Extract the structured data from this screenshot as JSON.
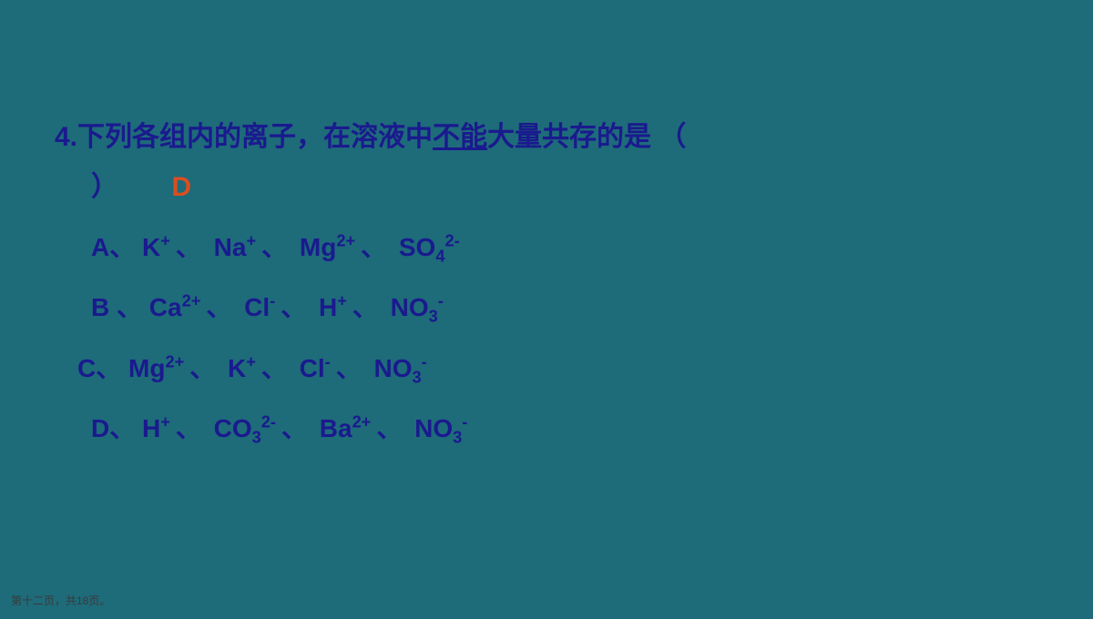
{
  "slide": {
    "background_color": "#1e6b7a",
    "text_color": "#1a1a8e",
    "answer_color": "#d94e1f",
    "question_number": "4.",
    "question_part1": "下列各组内的离子，在溶液中",
    "question_underline": "不能",
    "question_part2": "大量共存的是 （",
    "close_paren": "）",
    "answer": "D",
    "options": {
      "A": {
        "label": "A、",
        "ions": [
          {
            "base": "K",
            "super": "+"
          },
          {
            "base": "Na",
            "super": "+"
          },
          {
            "base": "Mg",
            "super": "2+"
          },
          {
            "base": "SO",
            "sub": "4",
            "super": "2-"
          }
        ]
      },
      "B": {
        "label": "B 、",
        "ions": [
          {
            "base": "Ca",
            "super": "2+"
          },
          {
            "base": "Cl",
            "super": "-"
          },
          {
            "base": "H",
            "super": "+"
          },
          {
            "base": "NO",
            "sub": "3",
            "super": "-"
          }
        ]
      },
      "C": {
        "label": "C、",
        "ions": [
          {
            "base": "Mg",
            "super": "2+"
          },
          {
            "base": "K",
            "super": "+"
          },
          {
            "base": "Cl",
            "super": "-"
          },
          {
            "base": "NO",
            "sub": "3",
            "super": "-"
          }
        ]
      },
      "D": {
        "label": "D、",
        "ions": [
          {
            "base": "H",
            "super": "+"
          },
          {
            "base": "CO",
            "sub": "3",
            "super": "2-"
          },
          {
            "base": "Ba",
            "super": "2+"
          },
          {
            "base": "NO",
            "sub": "3",
            "super": "-"
          }
        ]
      }
    },
    "separator": "、"
  },
  "footer": {
    "text": "第十二页，共18页。",
    "font_size": 12,
    "color": "#3a3a3a"
  }
}
